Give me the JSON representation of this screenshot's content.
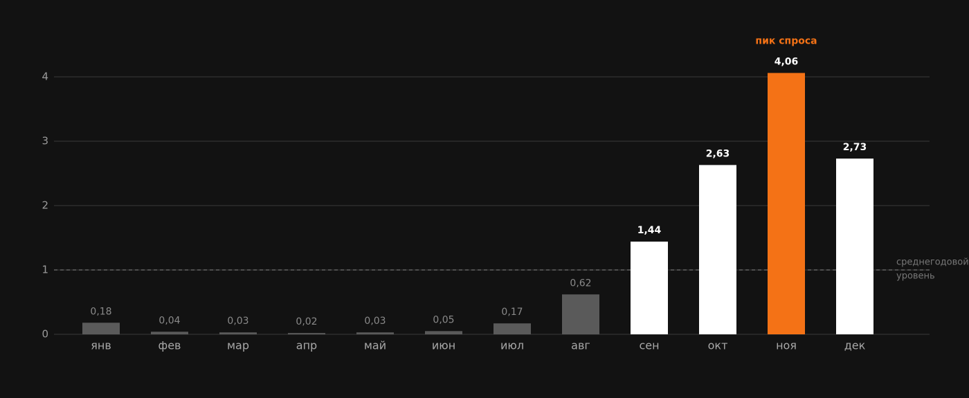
{
  "chart_data": {
    "type": "bar",
    "categories": [
      "янв",
      "фев",
      "мар",
      "апр",
      "май",
      "июн",
      "июл",
      "авг",
      "сен",
      "окт",
      "ноя",
      "дек"
    ],
    "values": [
      0.18,
      0.04,
      0.03,
      0.02,
      0.03,
      0.05,
      0.17,
      0.62,
      1.44,
      2.63,
      4.06,
      2.73
    ],
    "value_labels": [
      "0,18",
      "0,04",
      "0,03",
      "0,02",
      "0,03",
      "0,05",
      "0,17",
      "0,62",
      "1,44",
      "2,63",
      "4,06",
      "2,73"
    ],
    "colors": [
      "#5a5a5a",
      "#5a5a5a",
      "#5a5a5a",
      "#5a5a5a",
      "#5a5a5a",
      "#5a5a5a",
      "#5a5a5a",
      "#5a5a5a",
      "#ffffff",
      "#ffffff",
      "#f47216",
      "#ffffff"
    ],
    "ylim": [
      0,
      4
    ],
    "yticks": [
      0,
      1,
      2,
      3,
      4
    ],
    "grid": true,
    "reference_line": {
      "value": 1,
      "label": [
        "среднегодовой",
        "уровень"
      ]
    },
    "annotation": {
      "text": "пик спроса",
      "category": "ноя"
    }
  }
}
